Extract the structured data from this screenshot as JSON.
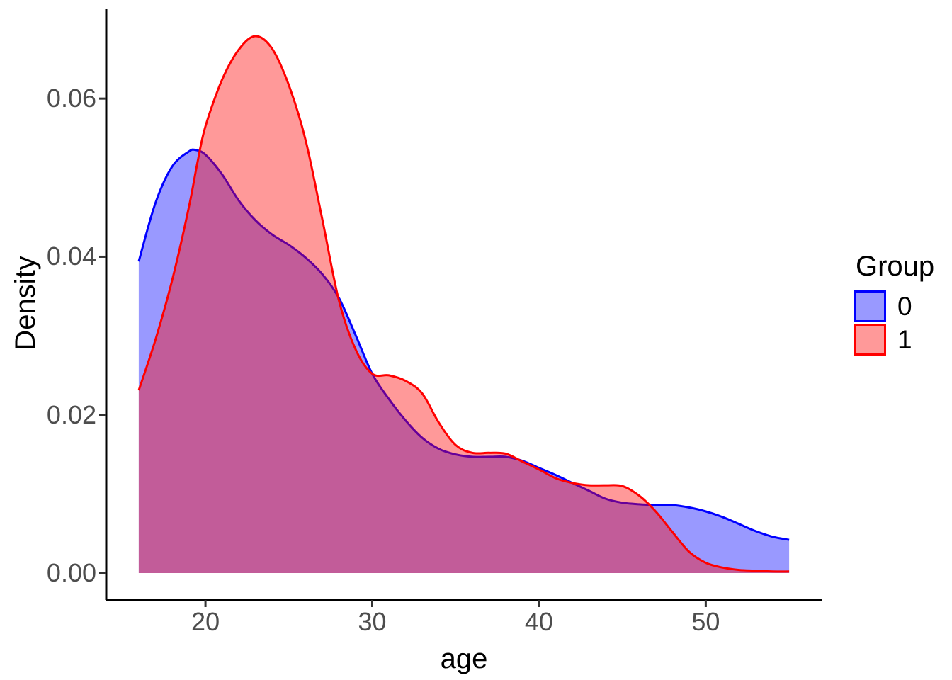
{
  "axes": {
    "x_title": "age",
    "y_title": "Density",
    "x_tick_labels": [
      "20",
      "30",
      "40",
      "50"
    ],
    "y_tick_labels": [
      "0.00",
      "0.02",
      "0.04",
      "0.06"
    ]
  },
  "legend": {
    "title": "Group",
    "items": [
      {
        "label": "0",
        "stroke": "#0000ff",
        "fill": "#9999ff"
      },
      {
        "label": "1",
        "stroke": "#ff0000",
        "fill": "#ff9999"
      }
    ]
  },
  "style_colors": {
    "axis_line": "#000000",
    "tick_mark": "#333333",
    "tick_label": "#4d4d4d",
    "background": "#ffffff"
  },
  "chart_data": {
    "type": "area",
    "subtype": "overlapping-density",
    "title": "",
    "xlabel": "age",
    "ylabel": "Density",
    "xlim": [
      14.05,
      56.95
    ],
    "ylim": [
      -0.0034,
      0.0713
    ],
    "x_ticks": [
      20,
      30,
      40,
      50
    ],
    "y_ticks": [
      0,
      0.02,
      0.04,
      0.06
    ],
    "grid": false,
    "legend_title": "Group",
    "legend_position": "right",
    "fill_alpha": 0.4,
    "series": [
      {
        "name": "0",
        "line_color": "#0000ff",
        "fill_color": "rgba(0,0,255,0.4)",
        "points": [
          [
            16,
            0.0394
          ],
          [
            17,
            0.0468
          ],
          [
            18,
            0.0514
          ],
          [
            19,
            0.0533
          ],
          [
            19.4,
            0.0535
          ],
          [
            20,
            0.0529
          ],
          [
            21,
            0.0504
          ],
          [
            22,
            0.0471
          ],
          [
            23,
            0.0446
          ],
          [
            24,
            0.0428
          ],
          [
            25,
            0.0415
          ],
          [
            26,
            0.0399
          ],
          [
            27,
            0.0378
          ],
          [
            28,
            0.0348
          ],
          [
            29,
            0.0301
          ],
          [
            30,
            0.0252
          ],
          [
            31,
            0.022
          ],
          [
            32,
            0.0193
          ],
          [
            33,
            0.0171
          ],
          [
            34,
            0.0157
          ],
          [
            35,
            0.015
          ],
          [
            36,
            0.0147
          ],
          [
            37,
            0.0147
          ],
          [
            38,
            0.0147
          ],
          [
            39,
            0.0142
          ],
          [
            40,
            0.0133
          ],
          [
            41,
            0.0124
          ],
          [
            42,
            0.0114
          ],
          [
            43,
            0.0104
          ],
          [
            44,
            0.0094
          ],
          [
            45,
            0.0089
          ],
          [
            46,
            0.0087
          ],
          [
            47,
            0.0086
          ],
          [
            48,
            0.0086
          ],
          [
            49,
            0.0083
          ],
          [
            50,
            0.0078
          ],
          [
            51,
            0.0071
          ],
          [
            52,
            0.0062
          ],
          [
            53,
            0.0053
          ],
          [
            54,
            0.0046
          ],
          [
            55,
            0.0042
          ]
        ]
      },
      {
        "name": "1",
        "line_color": "#ff0000",
        "fill_color": "rgba(255,0,0,0.4)",
        "points": [
          [
            16,
            0.0231
          ],
          [
            17,
            0.0295
          ],
          [
            18,
            0.037
          ],
          [
            19,
            0.0462
          ],
          [
            19.5,
            0.0517
          ],
          [
            20,
            0.0565
          ],
          [
            21,
            0.0624
          ],
          [
            22,
            0.0662
          ],
          [
            23,
            0.0679
          ],
          [
            24,
            0.0663
          ],
          [
            25,
            0.0617
          ],
          [
            26,
            0.0548
          ],
          [
            27,
            0.0448
          ],
          [
            28,
            0.0345
          ],
          [
            29,
            0.0283
          ],
          [
            30,
            0.0252
          ],
          [
            31,
            0.025
          ],
          [
            32,
            0.0243
          ],
          [
            33,
            0.0227
          ],
          [
            34,
            0.019
          ],
          [
            35,
            0.0162
          ],
          [
            36,
            0.0152
          ],
          [
            37,
            0.0152
          ],
          [
            38,
            0.0151
          ],
          [
            39,
            0.0141
          ],
          [
            40,
            0.0131
          ],
          [
            41,
            0.012
          ],
          [
            42,
            0.0114
          ],
          [
            43,
            0.0111
          ],
          [
            44,
            0.0111
          ],
          [
            45,
            0.011
          ],
          [
            46,
            0.0098
          ],
          [
            47,
            0.0078
          ],
          [
            48,
            0.0052
          ],
          [
            49,
            0.0027
          ],
          [
            50,
            0.0013
          ],
          [
            51,
            0.0007
          ],
          [
            52,
            0.0004
          ],
          [
            53,
            0.0003
          ],
          [
            54,
            0.0002
          ],
          [
            55,
            0.0002
          ]
        ]
      }
    ]
  }
}
